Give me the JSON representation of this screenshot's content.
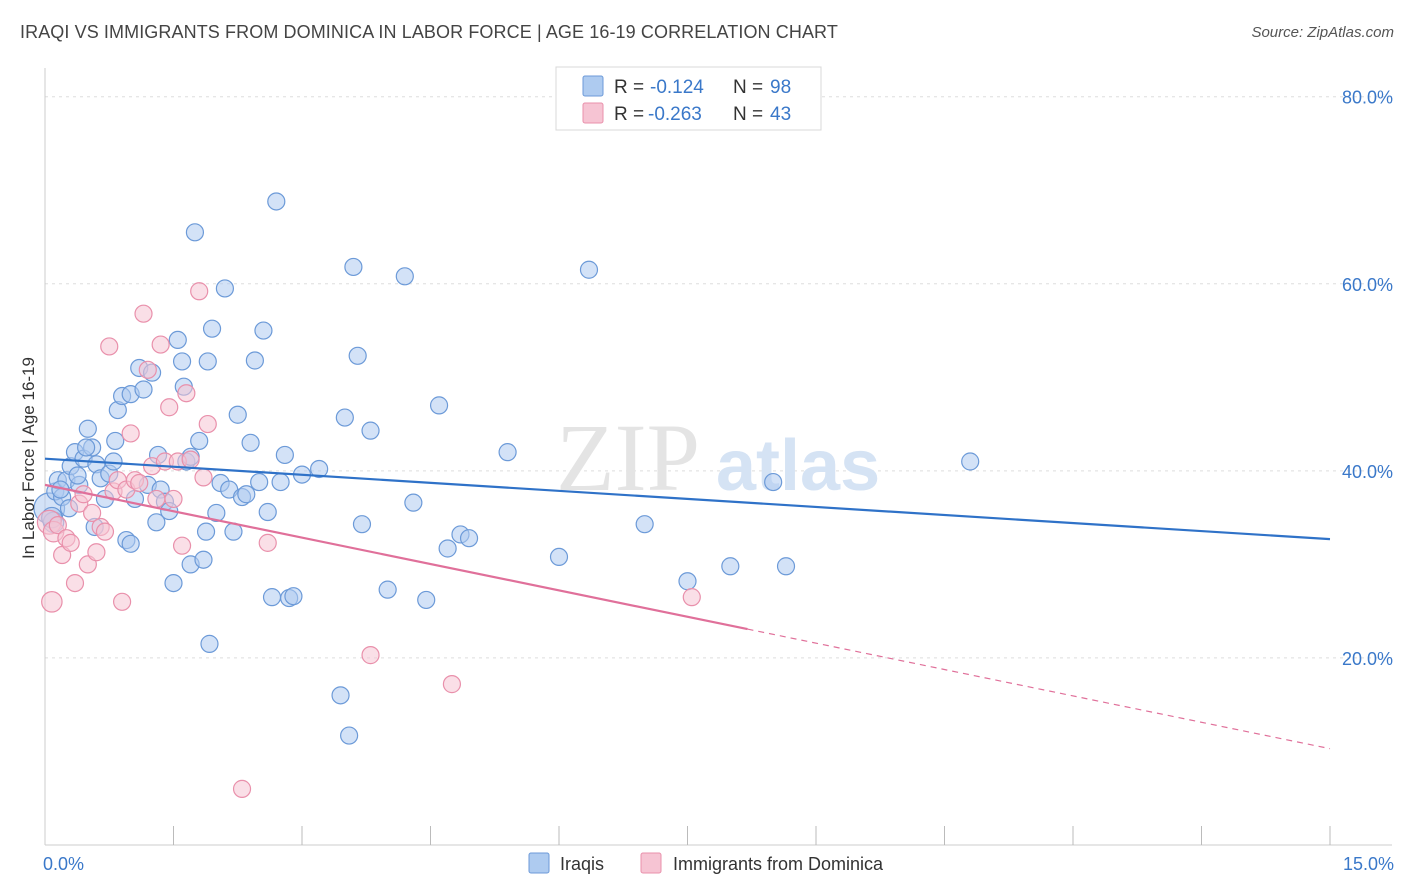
{
  "title": "IRAQI VS IMMIGRANTS FROM DOMINICA IN LABOR FORCE | AGE 16-19 CORRELATION CHART",
  "source": "Source: ZipAtlas.com",
  "watermark": {
    "zip": "ZIP",
    "atlas": "atlas"
  },
  "colors": {
    "blue_fill": "#aecbf0",
    "blue_stroke": "#6c9ad8",
    "blue_line": "#2f72c8",
    "pink_fill": "#f6c4d3",
    "pink_stroke": "#e990ab",
    "pink_line": "#e0709a",
    "grid": "#dddddd",
    "tick_text": "#3a78c9"
  },
  "legend": {
    "rows": [
      {
        "r_label": "R =",
        "r_value": "-0.124",
        "n_label": "N =",
        "n_value": "98",
        "series": "blue"
      },
      {
        "r_label": "R =",
        "r_value": "-0.263",
        "n_label": "N =",
        "n_value": "43",
        "series": "pink"
      }
    ]
  },
  "bottom_legend": [
    {
      "label": "Iraqis",
      "series": "blue"
    },
    {
      "label": "Immigrants from Dominica",
      "series": "pink"
    }
  ],
  "chart_data": {
    "type": "scatter",
    "title": "IRAQI VS IMMIGRANTS FROM DOMINICA IN LABOR FORCE | AGE 16-19 CORRELATION CHART",
    "xlabel": "",
    "ylabel": "In Labor Force | Age 16-19",
    "xlim": [
      0,
      15
    ],
    "ylim": [
      0,
      82
    ],
    "x_tick_labels": [
      {
        "value": 0,
        "label": "0.0%"
      },
      {
        "value": 15,
        "label": "15.0%"
      }
    ],
    "y_tick_labels": [
      {
        "value": 20,
        "label": "20.0%"
      },
      {
        "value": 40,
        "label": "40.0%"
      },
      {
        "value": 60,
        "label": "60.0%"
      },
      {
        "value": 80,
        "label": "80.0%"
      }
    ],
    "x_minor_ticks": [
      1.5,
      3,
      4.5,
      6,
      7.5,
      9,
      10.5,
      12,
      13.5,
      15
    ],
    "gridlines": [
      20,
      40,
      60,
      80
    ],
    "series": [
      {
        "name": "Iraqis",
        "color": "blue",
        "trend": {
          "x0": 0,
          "y0": 41.3,
          "x1": 15,
          "y1": 32.7,
          "solid_until": 15
        },
        "points": [
          [
            0.05,
            36.0,
            18
          ],
          [
            0.1,
            34.5,
            12
          ],
          [
            0.12,
            37.8,
            10
          ],
          [
            0.15,
            39.0,
            10
          ],
          [
            0.2,
            37.2,
            10
          ],
          [
            0.25,
            39.0,
            10
          ],
          [
            0.3,
            40.5,
            10
          ],
          [
            0.35,
            42.0,
            10
          ],
          [
            0.4,
            38.5,
            10
          ],
          [
            0.45,
            41.3,
            10
          ],
          [
            0.5,
            44.5,
            10
          ],
          [
            0.55,
            42.5,
            10
          ],
          [
            0.6,
            40.7,
            10
          ],
          [
            0.65,
            39.2,
            10
          ],
          [
            0.7,
            37.0,
            10
          ],
          [
            0.75,
            39.7,
            10
          ],
          [
            0.8,
            41.0,
            10
          ],
          [
            0.82,
            43.2,
            10
          ],
          [
            0.85,
            46.5,
            10
          ],
          [
            0.9,
            48.0,
            10
          ],
          [
            0.95,
            32.6,
            10
          ],
          [
            1.0,
            32.2,
            10
          ],
          [
            1.0,
            48.2,
            10
          ],
          [
            1.05,
            37.0,
            10
          ],
          [
            1.1,
            51.0,
            10
          ],
          [
            1.15,
            48.7,
            10
          ],
          [
            1.2,
            38.5,
            10
          ],
          [
            1.25,
            50.5,
            10
          ],
          [
            1.3,
            34.5,
            10
          ],
          [
            1.32,
            41.7,
            10
          ],
          [
            1.35,
            38.0,
            10
          ],
          [
            1.4,
            36.7,
            10
          ],
          [
            1.45,
            35.7,
            10
          ],
          [
            1.5,
            28.0,
            10
          ],
          [
            1.55,
            54.0,
            10
          ],
          [
            1.6,
            51.7,
            10
          ],
          [
            1.62,
            49.0,
            10
          ],
          [
            1.65,
            41.0,
            10
          ],
          [
            1.7,
            41.5,
            10
          ],
          [
            1.7,
            30.0,
            10
          ],
          [
            1.75,
            65.5,
            10
          ],
          [
            1.8,
            43.2,
            10
          ],
          [
            1.85,
            30.5,
            10
          ],
          [
            1.88,
            33.5,
            10
          ],
          [
            1.9,
            51.7,
            10
          ],
          [
            1.92,
            21.5,
            10
          ],
          [
            1.95,
            55.2,
            10
          ],
          [
            2.0,
            35.5,
            10
          ],
          [
            2.05,
            38.7,
            10
          ],
          [
            2.1,
            59.5,
            10
          ],
          [
            2.15,
            38.0,
            10
          ],
          [
            2.2,
            33.5,
            10
          ],
          [
            2.25,
            46.0,
            10
          ],
          [
            2.3,
            37.2,
            10
          ],
          [
            2.35,
            37.5,
            10
          ],
          [
            2.4,
            43.0,
            10
          ],
          [
            2.45,
            51.8,
            10
          ],
          [
            2.5,
            38.8,
            10
          ],
          [
            2.55,
            55.0,
            10
          ],
          [
            2.6,
            35.6,
            10
          ],
          [
            2.65,
            26.5,
            10
          ],
          [
            2.7,
            68.8,
            10
          ],
          [
            2.75,
            38.8,
            10
          ],
          [
            2.8,
            41.7,
            10
          ],
          [
            2.85,
            26.4,
            10
          ],
          [
            2.9,
            26.6,
            10
          ],
          [
            3.0,
            39.6,
            10
          ],
          [
            3.2,
            40.2,
            10
          ],
          [
            3.45,
            16.0,
            10
          ],
          [
            3.5,
            45.7,
            10
          ],
          [
            3.55,
            11.7,
            10
          ],
          [
            3.6,
            61.8,
            10
          ],
          [
            3.65,
            52.3,
            10
          ],
          [
            3.7,
            34.3,
            10
          ],
          [
            3.8,
            44.3,
            10
          ],
          [
            4.0,
            27.3,
            10
          ],
          [
            4.2,
            60.8,
            10
          ],
          [
            4.3,
            36.6,
            10
          ],
          [
            4.45,
            26.2,
            10
          ],
          [
            4.6,
            47.0,
            10
          ],
          [
            4.7,
            31.7,
            10
          ],
          [
            4.85,
            33.2,
            10
          ],
          [
            4.95,
            32.8,
            10
          ],
          [
            5.4,
            42.0,
            10
          ],
          [
            6.0,
            30.8,
            10
          ],
          [
            6.35,
            61.5,
            10
          ],
          [
            7.0,
            34.3,
            10
          ],
          [
            7.5,
            28.2,
            10
          ],
          [
            8.0,
            29.8,
            10
          ],
          [
            8.5,
            38.8,
            10
          ],
          [
            8.65,
            29.8,
            10
          ],
          [
            10.8,
            41.0,
            10
          ],
          [
            0.08,
            35.0,
            12
          ],
          [
            0.18,
            38.0,
            10
          ],
          [
            0.28,
            36.0,
            10
          ],
          [
            0.38,
            39.5,
            10
          ],
          [
            0.48,
            42.5,
            10
          ],
          [
            0.58,
            34.0,
            10
          ]
        ]
      },
      {
        "name": "Immigrants from Dominica",
        "color": "pink",
        "trend": {
          "x0": 0,
          "y0": 38.5,
          "x1": 15,
          "y1": 10.3,
          "solid_until": 8.2
        },
        "points": [
          [
            0.05,
            34.5,
            14
          ],
          [
            0.08,
            26.0,
            12
          ],
          [
            0.1,
            33.5,
            12
          ],
          [
            0.15,
            34.2,
            10
          ],
          [
            0.2,
            31.0,
            10
          ],
          [
            0.25,
            32.8,
            10
          ],
          [
            0.3,
            32.3,
            10
          ],
          [
            0.35,
            28.0,
            10
          ],
          [
            0.4,
            36.5,
            10
          ],
          [
            0.45,
            37.5,
            10
          ],
          [
            0.5,
            30.0,
            10
          ],
          [
            0.55,
            35.5,
            10
          ],
          [
            0.6,
            31.3,
            10
          ],
          [
            0.65,
            34.0,
            10
          ],
          [
            0.7,
            33.5,
            10
          ],
          [
            0.75,
            53.3,
            10
          ],
          [
            0.8,
            37.8,
            10
          ],
          [
            0.85,
            39.0,
            10
          ],
          [
            0.9,
            26.0,
            10
          ],
          [
            0.95,
            38.0,
            10
          ],
          [
            1.0,
            44.0,
            10
          ],
          [
            1.05,
            39.0,
            10
          ],
          [
            1.1,
            38.7,
            10
          ],
          [
            1.15,
            56.8,
            10
          ],
          [
            1.2,
            50.8,
            10
          ],
          [
            1.25,
            40.5,
            10
          ],
          [
            1.3,
            37.0,
            10
          ],
          [
            1.35,
            53.5,
            10
          ],
          [
            1.4,
            41.0,
            10
          ],
          [
            1.45,
            46.8,
            10
          ],
          [
            1.5,
            37.0,
            10
          ],
          [
            1.55,
            41.0,
            10
          ],
          [
            1.6,
            32.0,
            10
          ],
          [
            1.65,
            48.3,
            10
          ],
          [
            1.7,
            41.2,
            10
          ],
          [
            1.8,
            59.2,
            10
          ],
          [
            1.85,
            39.3,
            10
          ],
          [
            1.9,
            45.0,
            10
          ],
          [
            2.3,
            6.0,
            10
          ],
          [
            2.6,
            32.3,
            10
          ],
          [
            3.8,
            20.3,
            10
          ],
          [
            4.75,
            17.2,
            10
          ],
          [
            7.55,
            26.5,
            10
          ]
        ]
      }
    ]
  }
}
